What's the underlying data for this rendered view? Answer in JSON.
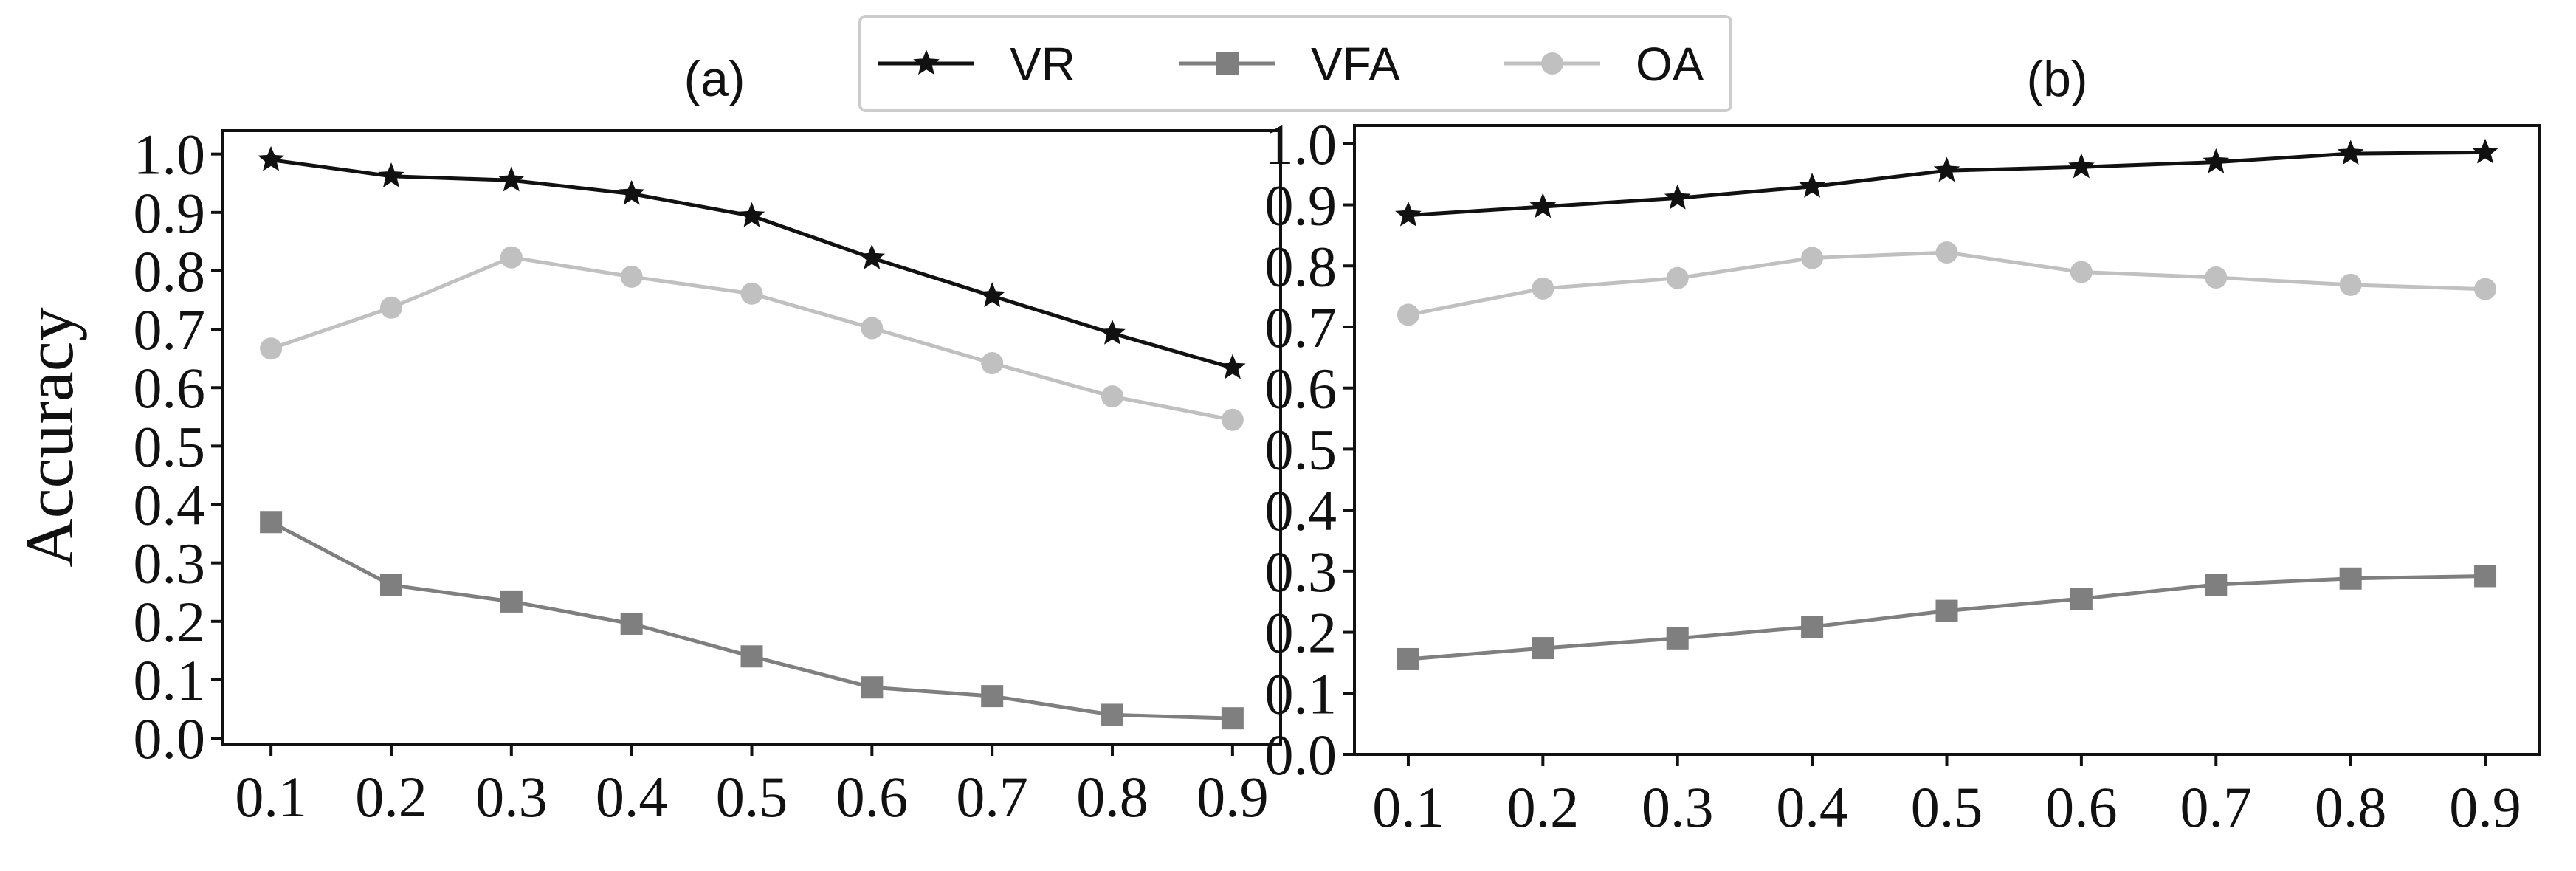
{
  "chart_data": [
    {
      "type": "line",
      "panel": "a",
      "title": "(a)",
      "xlabel": "",
      "ylabel": "Accuracy",
      "xlim": [
        0.06,
        0.94
      ],
      "ylim": [
        -0.01,
        1.04
      ],
      "x_ticks": [
        "0.1",
        "0.2",
        "0.3",
        "0.4",
        "0.5",
        "0.6",
        "0.7",
        "0.8",
        "0.9"
      ],
      "y_ticks": [
        "0.0",
        "0.1",
        "0.2",
        "0.3",
        "0.4",
        "0.5",
        "0.6",
        "0.7",
        "0.8",
        "0.9",
        "1.0"
      ],
      "grid": false,
      "x": [
        0.1,
        0.2,
        0.3,
        0.4,
        0.5,
        0.6,
        0.7,
        0.8,
        0.9
      ],
      "series": [
        {
          "name": "VR",
          "marker": "star",
          "color": "#111111",
          "values": [
            0.99,
            0.962,
            0.955,
            0.932,
            0.894,
            0.822,
            0.757,
            0.693,
            0.634
          ]
        },
        {
          "name": "VFA",
          "marker": "square",
          "color": "#7f7f7f",
          "values": [
            0.37,
            0.262,
            0.234,
            0.196,
            0.14,
            0.087,
            0.072,
            0.04,
            0.034
          ]
        },
        {
          "name": "OA",
          "marker": "circle",
          "color": "#c0c0c0",
          "values": [
            0.667,
            0.737,
            0.823,
            0.79,
            0.761,
            0.702,
            0.642,
            0.585,
            0.545
          ]
        }
      ]
    },
    {
      "type": "line",
      "panel": "b",
      "title": "(b)",
      "xlabel": "",
      "ylabel": "",
      "xlim": [
        0.06,
        0.94
      ],
      "ylim": [
        0.0,
        1.03
      ],
      "x_ticks": [
        "0.1",
        "0.2",
        "0.3",
        "0.4",
        "0.5",
        "0.6",
        "0.7",
        "0.8",
        "0.9"
      ],
      "y_ticks": [
        "0.0",
        "0.1",
        "0.2",
        "0.3",
        "0.4",
        "0.5",
        "0.6",
        "0.7",
        "0.8",
        "0.9",
        "1.0"
      ],
      "grid": false,
      "x": [
        0.1,
        0.2,
        0.3,
        0.4,
        0.5,
        0.6,
        0.7,
        0.8,
        0.9
      ],
      "series": [
        {
          "name": "VR",
          "marker": "star",
          "color": "#111111",
          "values": [
            0.883,
            0.897,
            0.911,
            0.93,
            0.956,
            0.962,
            0.97,
            0.984,
            0.986
          ]
        },
        {
          "name": "VFA",
          "marker": "square",
          "color": "#7f7f7f",
          "values": [
            0.156,
            0.174,
            0.19,
            0.209,
            0.235,
            0.255,
            0.278,
            0.288,
            0.292
          ]
        },
        {
          "name": "OA",
          "marker": "circle",
          "color": "#c0c0c0",
          "values": [
            0.72,
            0.763,
            0.78,
            0.813,
            0.822,
            0.79,
            0.781,
            0.769,
            0.762
          ]
        }
      ]
    }
  ],
  "legend": {
    "placement": "top-center",
    "entries": [
      {
        "label": "VR",
        "marker": "star",
        "color": "#111111"
      },
      {
        "label": "VFA",
        "marker": "square",
        "color": "#7f7f7f"
      },
      {
        "label": "OA",
        "marker": "circle",
        "color": "#c0c0c0"
      }
    ]
  }
}
